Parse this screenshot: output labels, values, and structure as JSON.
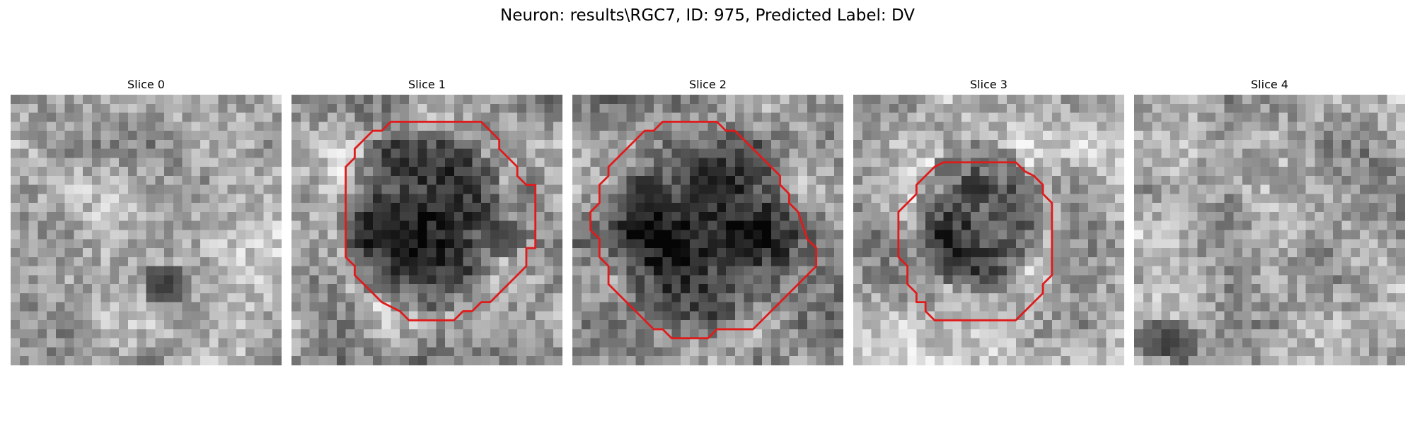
{
  "figure": {
    "title": "Neuron: results\\RGC7, ID: 975, Predicted Label: DV"
  },
  "colors": {
    "contour": "#e01b1b",
    "background": "#ffffff"
  },
  "slices": [
    {
      "title": "Slice 0",
      "has_contour": false
    },
    {
      "title": "Slice 1",
      "has_contour": true
    },
    {
      "title": "Slice 2",
      "has_contour": true
    },
    {
      "title": "Slice 3",
      "has_contour": true
    },
    {
      "title": "Slice 4",
      "has_contour": false
    }
  ]
}
